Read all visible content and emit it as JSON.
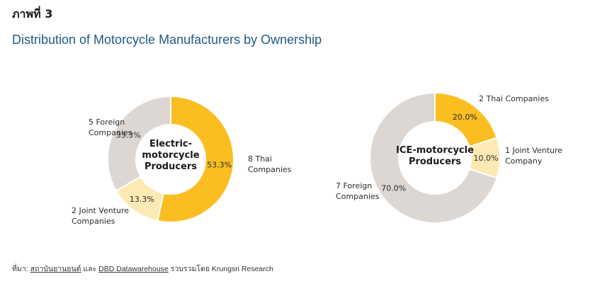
{
  "figure": {
    "label": "ภาพที่ 3",
    "title": "Distribution of Motorcycle Manufacturers by Ownership"
  },
  "source": {
    "prefix": "ที่มา:",
    "link1": "สถาบันยานยนต์",
    "and": "และ",
    "link2": "DBD Datawarehouse",
    "suffix": "รวบรวมโดย Krungsri Research"
  },
  "colors": {
    "thai": "#FBBE21",
    "joint_venture": "#FDE9B4",
    "foreign": "#DDD7D3"
  },
  "chart_data": [
    {
      "type": "pie",
      "center_label": [
        "Electric-",
        "motorcycle",
        "Producers"
      ],
      "categories": [
        "Thai Companies",
        "Foreign Companies",
        "Joint Venture Companies"
      ],
      "values": [
        53.3,
        33.3,
        13.3
      ],
      "counts": [
        8,
        5,
        2
      ],
      "value_labels": [
        "53.3%",
        "33.3%",
        "13.3%"
      ],
      "category_labels": [
        [
          "8 Thai",
          "Companies"
        ],
        [
          "5 Foreign",
          "Companies"
        ],
        [
          "2 Joint Venture",
          "Companies"
        ]
      ],
      "order": [
        "thai",
        "joint_venture",
        "foreign"
      ],
      "values_clockwise": [
        53.3,
        13.3,
        33.3
      ],
      "start": "12 o'clock, clockwise"
    },
    {
      "type": "pie",
      "center_label": [
        "ICE-motorcycle",
        "Producers"
      ],
      "categories": [
        "Thai Companies",
        "Joint Venture Company",
        "Foreign Companies"
      ],
      "values": [
        20.0,
        10.0,
        70.0
      ],
      "counts": [
        2,
        1,
        7
      ],
      "value_labels": [
        "20.0%",
        "10.0%",
        "70.0%"
      ],
      "category_labels": [
        [
          "2 Thai Companies"
        ],
        [
          "1 Joint Venture",
          "Company"
        ],
        [
          "7 Foreign",
          "Companies"
        ]
      ],
      "order": [
        "thai",
        "joint_venture",
        "foreign"
      ],
      "values_clockwise": [
        20.0,
        10.0,
        70.0
      ],
      "start": "12 o'clock, clockwise"
    }
  ]
}
